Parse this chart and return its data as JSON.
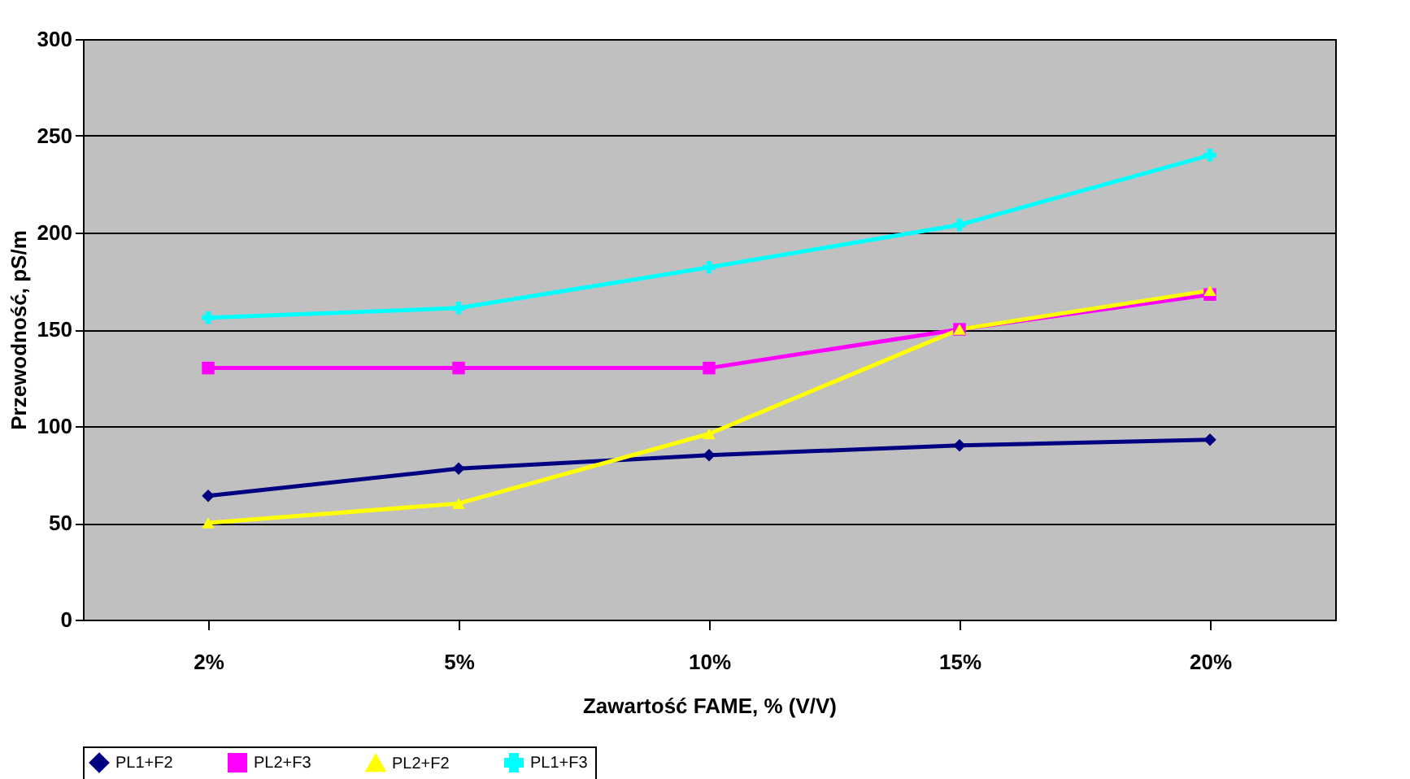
{
  "chart_data": {
    "type": "line",
    "xlabel": "Zawartość FAME, % (V/V)",
    "ylabel": "Przewodność, pS/m",
    "categories": [
      "2%",
      "5%",
      "10%",
      "15%",
      "20%"
    ],
    "ylim": [
      0,
      300
    ],
    "yticks": [
      0,
      50,
      100,
      150,
      200,
      250,
      300
    ],
    "grid": "y",
    "legend": "bottom",
    "line_style": "solid",
    "series": [
      {
        "name": "PL1+F2",
        "color": "#000080",
        "marker": "diamond",
        "values": [
          64,
          78,
          85,
          90,
          93
        ]
      },
      {
        "name": "PL2+F3",
        "color": "#ff00ff",
        "marker": "square",
        "values": [
          130,
          130,
          130,
          150,
          168
        ]
      },
      {
        "name": "PL2+F2",
        "color": "#ffff00",
        "marker": "triangle",
        "values": [
          50,
          60,
          96,
          150,
          170
        ]
      },
      {
        "name": "PL1+F3",
        "color": "#00ffff",
        "marker": "cross",
        "values": [
          156,
          161,
          182,
          204,
          240
        ]
      }
    ]
  }
}
